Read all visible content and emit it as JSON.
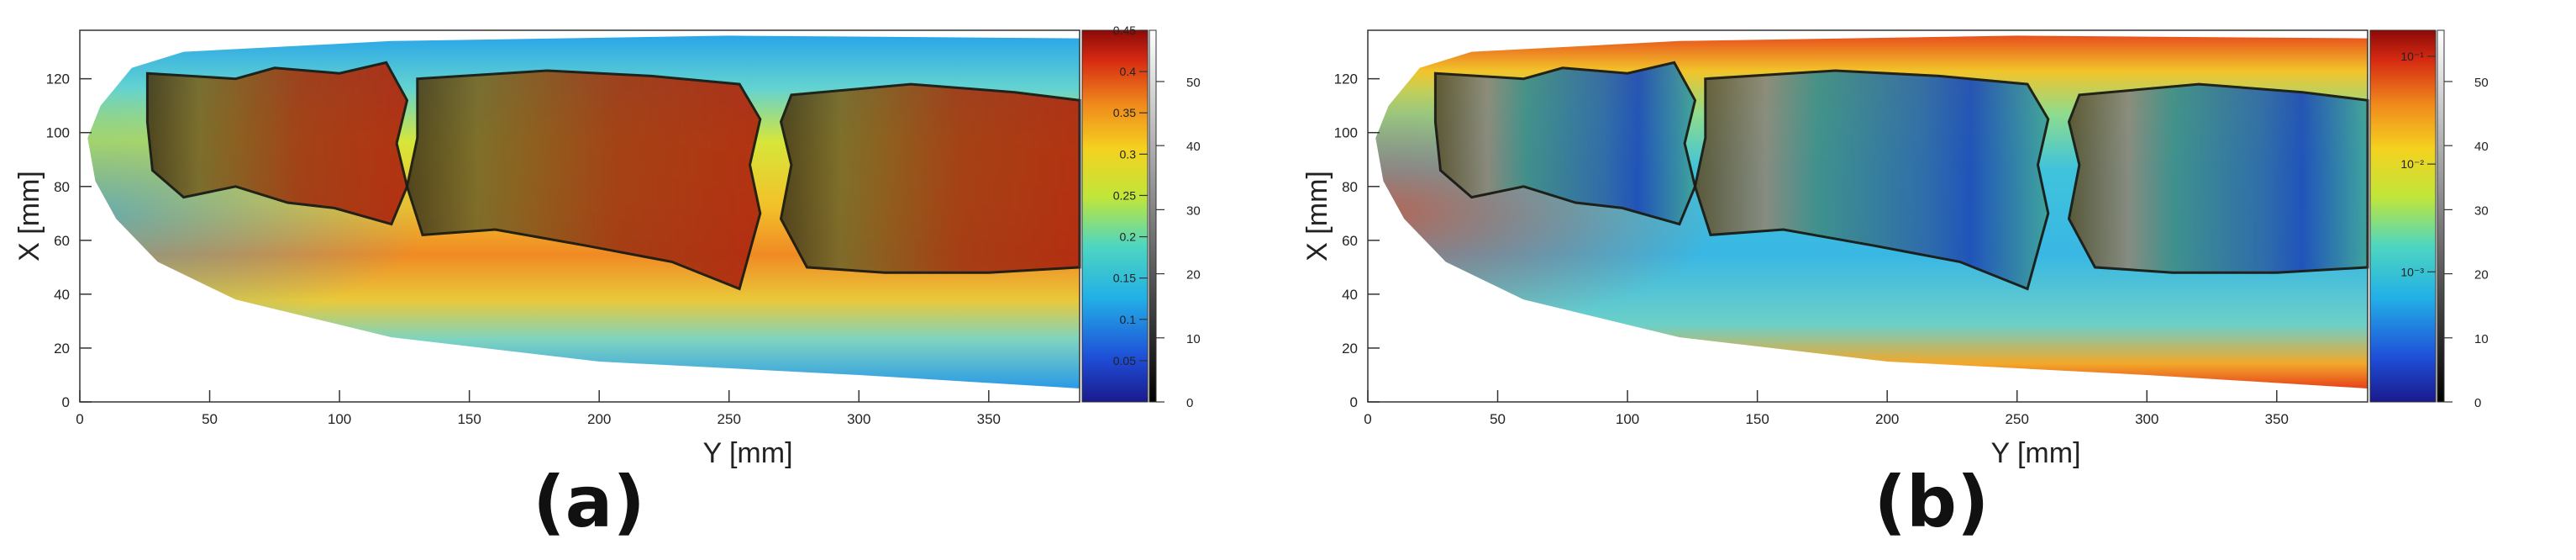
{
  "chart_data": [
    {
      "type": "heatmap",
      "panel_label": "(a)",
      "xlabel": "Y [mm]",
      "ylabel": "X [mm]",
      "xlim": [
        0,
        385
      ],
      "ylim": [
        0,
        138
      ],
      "x_ticks": [
        "0",
        "50",
        "100",
        "150",
        "200",
        "250",
        "300",
        "350"
      ],
      "y_ticks": [
        "0",
        "20",
        "40",
        "60",
        "80",
        "100",
        "120"
      ],
      "colorbar_color": {
        "range": [
          0,
          0.45
        ],
        "ticks": [
          "0.05",
          "0.1",
          "0.15",
          "0.2",
          "0.25",
          "0.3",
          "0.35",
          "0.4",
          "0.45"
        ]
      },
      "colorbar_gray": {
        "range": [
          0,
          58
        ],
        "ticks": [
          "0",
          "10",
          "20",
          "30",
          "40",
          "50"
        ]
      },
      "colormap": "rainbow (blue-cyan-green-yellow-orange-red) overlaid with grayscale bone CT",
      "grid": false
    },
    {
      "type": "heatmap",
      "panel_label": "(b)",
      "xlabel": "Y [mm]",
      "ylabel": "X [mm]",
      "xlim": [
        0,
        385
      ],
      "ylim": [
        0,
        138
      ],
      "x_ticks": [
        "0",
        "50",
        "100",
        "150",
        "200",
        "250",
        "300",
        "350"
      ],
      "y_ticks": [
        "0",
        "20",
        "40",
        "60",
        "80",
        "100",
        "120"
      ],
      "colorbar_color": {
        "scale": "log",
        "ticks": [
          "10⁻¹",
          "10⁻²",
          "10⁻³"
        ]
      },
      "colorbar_gray": {
        "range": [
          0,
          58
        ],
        "ticks": [
          "0",
          "10",
          "20",
          "30",
          "40",
          "50"
        ]
      },
      "colormap": "rainbow (blue-cyan-green-yellow-orange-red) overlaid with grayscale bone CT",
      "grid": false
    }
  ]
}
